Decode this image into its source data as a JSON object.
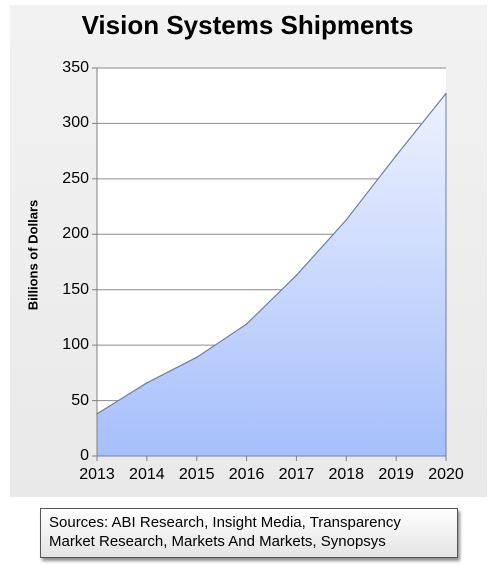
{
  "chart_data": {
    "type": "area",
    "title": "Vision Systems Shipments",
    "xlabel": "",
    "ylabel": "Billions of Dollars",
    "categories": [
      "2013",
      "2014",
      "2015",
      "2016",
      "2017",
      "2018",
      "2019",
      "2020"
    ],
    "values": [
      38,
      66,
      89,
      119,
      163,
      213,
      271,
      327
    ],
    "ylim": [
      0,
      350
    ],
    "yticks": [
      "0",
      "50",
      "100",
      "150",
      "200",
      "250",
      "300",
      "350"
    ],
    "grid": true,
    "fill_color": "#a6bffb",
    "line_color": "#6b7fa8"
  },
  "source_note": "Sources: ABI Research, Insight Media, Transparency Market Research, Markets And Markets, Synopsys"
}
